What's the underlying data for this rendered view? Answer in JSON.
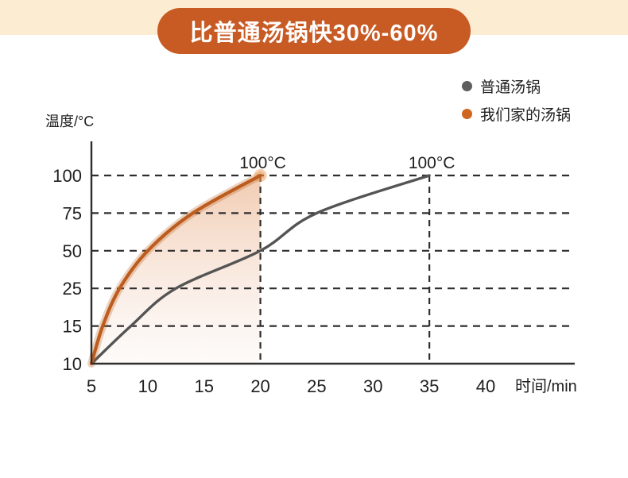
{
  "banner": {
    "label": "比普通汤锅快30%-60%"
  },
  "colors": {
    "banner_bg": "#c85a23",
    "top_band": "#fcecd2",
    "page_bg": "#ffffff",
    "grid": "#2e2e2e",
    "axis": "#2e2e2e",
    "text": "#1f1f1f",
    "area_fill_top": "rgba(222,131,70,0.42)",
    "area_fill_bottom": "rgba(246,230,221,0.18)"
  },
  "chart_data": {
    "type": "line",
    "title": "",
    "xlabel": "时间/min",
    "ylabel": "温度/°C",
    "x_ticks": [
      5,
      10,
      15,
      20,
      25,
      30,
      35,
      40
    ],
    "y_ticks": [
      10,
      15,
      25,
      50,
      75,
      100
    ],
    "y_scale_note": "y tick labels 10,15,25,50,75,100 are evenly spaced (non-linear axis)",
    "grid": "dashed horizontal gridlines at 15,25,50,75,100",
    "legend_position": "top-right",
    "xlim": [
      5,
      43
    ],
    "series": [
      {
        "name": "普通汤锅",
        "color": "#545454",
        "x": [
          5,
          8.5,
          12.5,
          20,
          25,
          35
        ],
        "y": [
          10,
          15,
          25,
          50,
          75,
          100
        ],
        "end_annotation": "100°C",
        "end_x": 35,
        "drop_line": true,
        "area_fill": false,
        "glow": false
      },
      {
        "name": "我们家的汤锅",
        "color": "#bc5d1e",
        "x": [
          5,
          6,
          7.5,
          10,
          14,
          20
        ],
        "y": [
          10,
          15,
          25,
          50,
          75,
          100
        ],
        "end_annotation": "100°C",
        "end_x": 20,
        "drop_line": true,
        "area_fill": true,
        "glow": true
      }
    ]
  }
}
